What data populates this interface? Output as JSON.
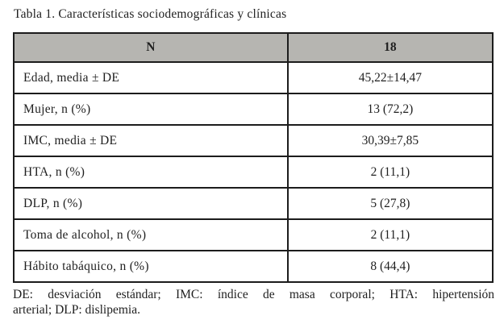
{
  "title": "Tabla 1. Características sociodemográficas y clínicas",
  "table": {
    "header": {
      "label": "N",
      "value": "18"
    },
    "rows": [
      {
        "label": "Edad, media ± DE",
        "value": "45,22±14,47"
      },
      {
        "label": "Mujer, n (%)",
        "value": "13 (72,2)"
      },
      {
        "label": "IMC, media ± DE",
        "value": "30,39±7,85"
      },
      {
        "label": "HTA, n (%)",
        "value": "2 (11,1)"
      },
      {
        "label": "DLP, n (%)",
        "value": "5 (27,8)"
      },
      {
        "label": "Toma de alcohol, n (%)",
        "value": "2 (11,1)"
      },
      {
        "label": "Hábito tabáquico, n (%)",
        "value": "8 (44,4)"
      }
    ]
  },
  "footnote": {
    "line1": "DE: desviación estándar; IMC: índice de masa corporal; HTA: hipertensión",
    "line2": "arterial; DLP: dislipemia.",
    "full": "DE: desviación estándar; IMC: índice de masa corporal; HTA: hipertensión arterial; DLP: dislipemia."
  },
  "colors": {
    "header_bg": "#b6b5b1",
    "border": "#1c1c1c",
    "text": "#1f1f1f",
    "background": "#ffffff"
  }
}
